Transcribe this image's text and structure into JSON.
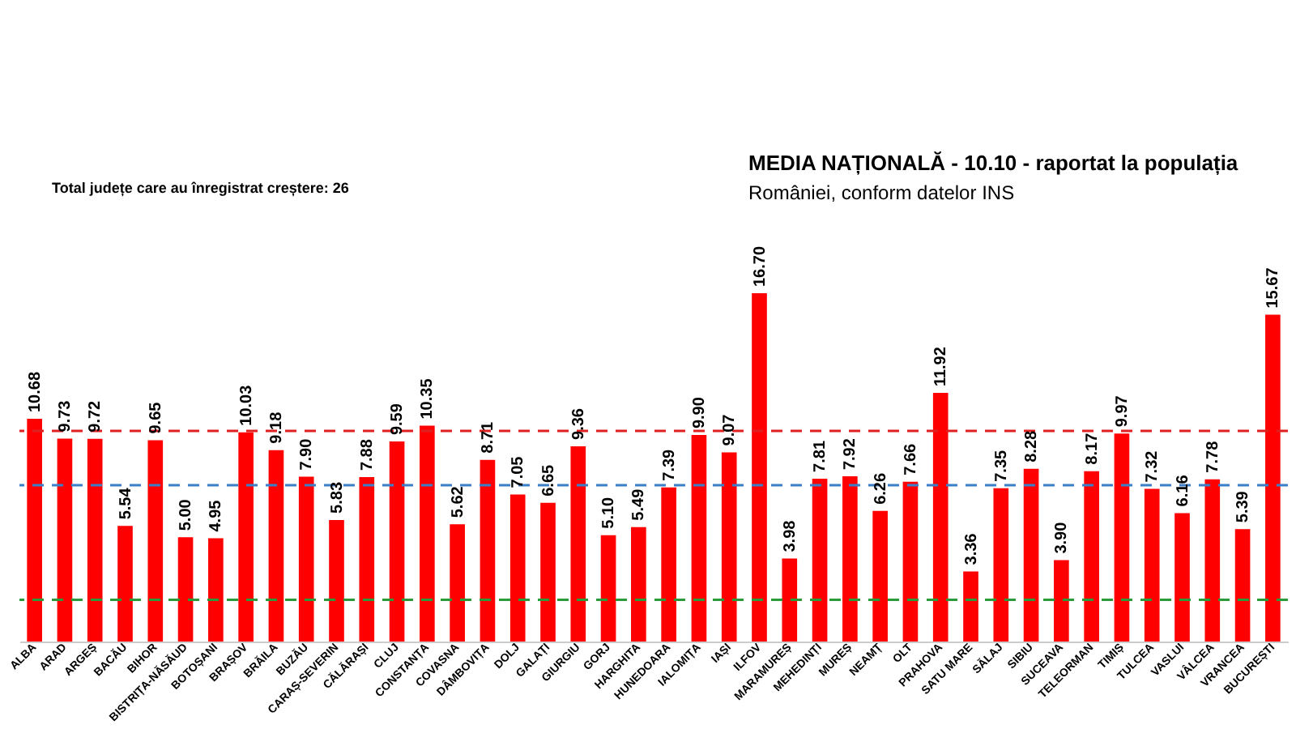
{
  "chart_data": {
    "type": "bar",
    "categories": [
      "ALBA",
      "ARAD",
      "ARGEȘ",
      "BACĂU",
      "BIHOR",
      "BISTRIȚA-NĂSĂUD",
      "BOTOȘANI",
      "BRAȘOV",
      "BRĂILA",
      "BUZĂU",
      "CARAȘ-SEVERIN",
      "CĂLĂRAȘI",
      "CLUJ",
      "CONSTANȚA",
      "COVASNA",
      "DÂMBOVIȚA",
      "DOLJ",
      "GALAȚI",
      "GIURGIU",
      "GORJ",
      "HARGHITA",
      "HUNEDOARA",
      "IALOMIȚA",
      "IAȘI",
      "ILFOV",
      "MARAMUREȘ",
      "MEHEDINȚI",
      "MUREȘ",
      "NEAMȚ",
      "OLT",
      "PRAHOVA",
      "SATU MARE",
      "SĂLAJ",
      "SIBIU",
      "SUCEAVA",
      "TELEORMAN",
      "TIMIȘ",
      "TULCEA",
      "VASLUI",
      "VÂLCEA",
      "VRANCEA",
      "BUCUREȘTI"
    ],
    "values": [
      10.68,
      9.73,
      9.72,
      5.54,
      9.65,
      5.0,
      4.95,
      10.03,
      9.18,
      7.9,
      5.83,
      7.88,
      9.59,
      10.35,
      5.62,
      8.71,
      7.05,
      6.65,
      9.36,
      5.1,
      5.49,
      7.39,
      9.9,
      9.07,
      16.7,
      3.98,
      7.81,
      7.92,
      6.26,
      7.66,
      11.92,
      3.36,
      7.35,
      8.28,
      3.9,
      8.17,
      9.97,
      7.32,
      6.16,
      7.78,
      5.39,
      15.67
    ],
    "color": "#ff0000",
    "value_labels": [
      "10.68",
      "9.73",
      "9.72",
      "5.54",
      "9.65",
      "5.00",
      "4.95",
      "10.03",
      "9.18",
      "7.90",
      "5.83",
      "7.88",
      "9.59",
      "10.35",
      "5.62",
      "8.71",
      "7.05",
      "6.65",
      "9.36",
      "5.10",
      "5.49",
      "7.39",
      "9.90",
      "9.07",
      "16.70",
      "3.98",
      "7.81",
      "7.92",
      "6.26",
      "7.66",
      "11.92",
      "3.36",
      "7.35",
      "8.28",
      "3.90",
      "8.17",
      "9.97",
      "7.32",
      "6.16",
      "7.78",
      "5.39",
      "15.67"
    ],
    "tick_labels": "x",
    "grid": false,
    "ref_lines": [
      {
        "axis": "y",
        "value": 10.1,
        "color": "#e02020",
        "line_style": "dashed"
      },
      {
        "axis": "y",
        "value": 7.5,
        "color": "#3a7fc8",
        "line_style": "dashed"
      },
      {
        "axis": "y",
        "value": 2.0,
        "color": "#2a9a3a",
        "line_style": "dashed"
      }
    ],
    "annotations": [
      "Total județe care au înregistrat creștere:  26",
      "MEDIA NAȚIONALĂ - 10.10 -  raportat la populația",
      "României, conform datelor INS"
    ]
  }
}
